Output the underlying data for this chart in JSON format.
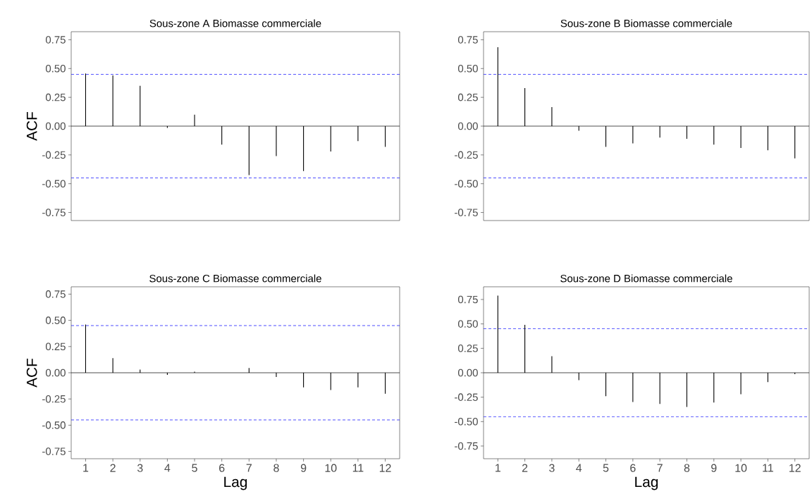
{
  "chart_data": [
    {
      "type": "bar",
      "title": "Sous-zone A Biomasse commerciale",
      "ylabel": "ACF",
      "tick_labels": "y",
      "color": "#000000",
      "x": [
        1,
        2,
        3,
        4,
        5,
        6,
        7,
        8,
        9,
        10,
        11,
        12
      ],
      "xlim": [
        0.47,
        12.53
      ],
      "xticks": [
        1,
        2,
        3,
        4,
        5,
        6,
        7,
        8,
        9,
        10,
        11,
        12
      ],
      "values": [
        0.457,
        0.44,
        0.35,
        -0.015,
        0.1,
        -0.16,
        -0.425,
        -0.26,
        -0.39,
        -0.22,
        -0.13,
        -0.18
      ],
      "ylim": [
        -0.82,
        0.82
      ],
      "yticks": [
        {
          "value": -0.75,
          "label": "-0.75"
        },
        {
          "value": -0.5,
          "label": "-0.50"
        },
        {
          "value": -0.25,
          "label": "-0.25"
        },
        {
          "value": 0,
          "label": "0.00"
        },
        {
          "value": 0.25,
          "label": "0.25"
        },
        {
          "value": 0.5,
          "label": "0.50"
        },
        {
          "value": 0.75,
          "label": "0.75"
        }
      ],
      "ref_lines": [
        {
          "axis": "y",
          "value": 0,
          "color": "#000000",
          "line_style": "solid"
        },
        {
          "axis": "y",
          "value": 0.45,
          "color": "#0000ff",
          "line_style": "dashed"
        },
        {
          "axis": "y",
          "value": -0.45,
          "color": "#0000ff",
          "line_style": "dashed"
        }
      ]
    },
    {
      "type": "bar",
      "title": "Sous-zone B Biomasse commerciale",
      "tick_labels": "y",
      "color": "#000000",
      "x": [
        1,
        2,
        3,
        4,
        5,
        6,
        7,
        8,
        9,
        10,
        11,
        12
      ],
      "xlim": [
        0.47,
        12.53
      ],
      "xticks": [
        1,
        2,
        3,
        4,
        5,
        6,
        7,
        8,
        9,
        10,
        11,
        12
      ],
      "values": [
        0.685,
        0.33,
        0.165,
        -0.04,
        -0.18,
        -0.15,
        -0.1,
        -0.11,
        -0.16,
        -0.19,
        -0.21,
        -0.28
      ],
      "ylim": [
        -0.82,
        0.82
      ],
      "yticks": [
        {
          "value": -0.75,
          "label": "-0.75"
        },
        {
          "value": -0.5,
          "label": "-0.50"
        },
        {
          "value": -0.25,
          "label": "-0.25"
        },
        {
          "value": 0,
          "label": "0.00"
        },
        {
          "value": 0.25,
          "label": "0.25"
        },
        {
          "value": 0.5,
          "label": "0.50"
        },
        {
          "value": 0.75,
          "label": "0.75"
        }
      ],
      "ref_lines": [
        {
          "axis": "y",
          "value": 0,
          "color": "#000000",
          "line_style": "solid"
        },
        {
          "axis": "y",
          "value": 0.45,
          "color": "#0000ff",
          "line_style": "dashed"
        },
        {
          "axis": "y",
          "value": -0.45,
          "color": "#0000ff",
          "line_style": "dashed"
        }
      ]
    },
    {
      "type": "bar",
      "title": "Sous-zone C Biomasse commerciale",
      "ylabel": "ACF",
      "xlabel": "Lag",
      "color": "#000000",
      "x": [
        1,
        2,
        3,
        4,
        5,
        6,
        7,
        8,
        9,
        10,
        11,
        12
      ],
      "xlim": [
        0.47,
        12.53
      ],
      "xticks": [
        1,
        2,
        3,
        4,
        5,
        6,
        7,
        8,
        9,
        10,
        11,
        12
      ],
      "values": [
        0.46,
        0.14,
        0.03,
        -0.02,
        0.01,
        null,
        0.045,
        -0.04,
        -0.14,
        -0.165,
        -0.14,
        -0.2
      ],
      "ylim": [
        -0.82,
        0.82
      ],
      "yticks": [
        {
          "value": -0.75,
          "label": "-0.75"
        },
        {
          "value": -0.5,
          "label": "-0.50"
        },
        {
          "value": -0.25,
          "label": "-0.25"
        },
        {
          "value": 0,
          "label": "0.00"
        },
        {
          "value": 0.25,
          "label": "0.25"
        },
        {
          "value": 0.5,
          "label": "0.50"
        },
        {
          "value": 0.75,
          "label": "0.75"
        }
      ],
      "ref_lines": [
        {
          "axis": "y",
          "value": 0,
          "color": "#000000",
          "line_style": "solid"
        },
        {
          "axis": "y",
          "value": 0.45,
          "color": "#0000ff",
          "line_style": "dashed"
        },
        {
          "axis": "y",
          "value": -0.45,
          "color": "#0000ff",
          "line_style": "dashed"
        }
      ]
    },
    {
      "type": "bar",
      "title": "Sous-zone D Biomasse commerciale",
      "xlabel": "Lag",
      "color": "#000000",
      "x": [
        1,
        2,
        3,
        4,
        5,
        6,
        7,
        8,
        9,
        10,
        11,
        12
      ],
      "xlim": [
        0.47,
        12.53
      ],
      "xticks": [
        1,
        2,
        3,
        4,
        5,
        6,
        7,
        8,
        9,
        10,
        11,
        12
      ],
      "values": [
        0.79,
        0.49,
        0.17,
        -0.075,
        -0.24,
        -0.3,
        -0.32,
        -0.35,
        -0.305,
        -0.22,
        -0.095,
        -0.015
      ],
      "ylim": [
        -0.88,
        0.88
      ],
      "yticks": [
        {
          "value": -0.75,
          "label": "-0.75"
        },
        {
          "value": -0.5,
          "label": "-0.50"
        },
        {
          "value": -0.25,
          "label": "-0.25"
        },
        {
          "value": 0,
          "label": "0.00"
        },
        {
          "value": 0.25,
          "label": "0.25"
        },
        {
          "value": 0.5,
          "label": "0.50"
        },
        {
          "value": 0.75,
          "label": "0.75"
        }
      ],
      "ref_lines": [
        {
          "axis": "y",
          "value": 0,
          "color": "#000000",
          "line_style": "solid"
        },
        {
          "axis": "y",
          "value": 0.45,
          "color": "#0000ff",
          "line_style": "dashed"
        },
        {
          "axis": "y",
          "value": -0.45,
          "color": "#0000ff",
          "line_style": "dashed"
        }
      ]
    }
  ]
}
